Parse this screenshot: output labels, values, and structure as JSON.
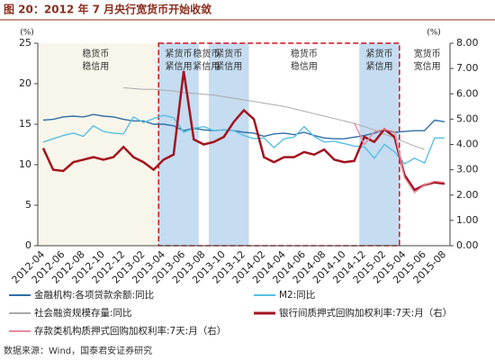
{
  "chart_data": {
    "type": "line",
    "title": "图 20：2012 年 7 月央行宽货币开始收敛",
    "y_unit": "(%)",
    "y2_unit": "(%)",
    "categories": [
      "2012-04",
      null,
      "2012-06",
      null,
      "2012-08",
      null,
      "2012-10",
      null,
      "2012-12",
      null,
      "2013-02",
      null,
      "2013-04",
      null,
      "2013-06",
      null,
      "2013-08",
      null,
      "2013-10",
      null,
      "2013-12",
      null,
      "2014-02",
      null,
      "2014-04",
      null,
      "2014-06",
      null,
      "2014-08",
      null,
      "2014-10",
      null,
      "2014-12",
      null,
      "2015-02",
      null,
      "2015-04",
      null,
      "2015-06",
      null,
      "2015-08"
    ],
    "ylim": [
      0,
      25
    ],
    "yticks": [
      0,
      5,
      10,
      15,
      20,
      25
    ],
    "y2lim": [
      0,
      8
    ],
    "y2ticks": [
      {
        "value": 0,
        "label": "0.00"
      },
      {
        "value": 1,
        "label": "1.00"
      },
      {
        "value": 2,
        "label": "2.00"
      },
      {
        "value": 3,
        "label": "3.00"
      },
      {
        "value": 4,
        "label": "4.00"
      },
      {
        "value": 5,
        "label": "5.00"
      },
      {
        "value": 6,
        "label": "6.00"
      },
      {
        "value": 7,
        "label": "7.00"
      },
      {
        "value": 8,
        "label": "8.00"
      }
    ],
    "series": [
      {
        "name": "金融机构:各项贷款余额:同比",
        "color": "#2f6ea8",
        "values": [
          15.5,
          15.6,
          15.9,
          16.0,
          15.9,
          16.2,
          16.0,
          15.9,
          15.6,
          15.4,
          15.4,
          15.0,
          15.0,
          14.8,
          14.2,
          14.5,
          14.3,
          14.2,
          14.3,
          14.2,
          14.0,
          13.9,
          13.5,
          13.8,
          13.9,
          13.7,
          14.0,
          13.6,
          13.3,
          13.2,
          13.2,
          13.4,
          13.6,
          13.9,
          14.3,
          14.0,
          14.1,
          14.2,
          14.2,
          15.5,
          15.3
        ]
      },
      {
        "name": "M2:同比",
        "color": "#56bfe3",
        "values": [
          12.8,
          13.2,
          13.6,
          13.9,
          13.5,
          14.8,
          14.1,
          13.9,
          13.8,
          15.9,
          15.2,
          15.7,
          16.1,
          15.8,
          14.0,
          14.5,
          14.7,
          14.2,
          14.3,
          14.2,
          13.6,
          13.2,
          13.3,
          12.1,
          13.2,
          13.4,
          14.7,
          13.5,
          12.8,
          12.9,
          12.6,
          12.3,
          12.2,
          10.8,
          12.5,
          11.6,
          10.1,
          10.8,
          10.2,
          13.3,
          13.3
        ]
      },
      {
        "name": "社会融资规模存量:同比",
        "color": "#aaaaaa",
        "values": [
          null,
          null,
          null,
          null,
          null,
          null,
          null,
          null,
          19.5,
          19.4,
          19.3,
          19.3,
          19.2,
          19.1,
          18.9,
          18.8,
          18.7,
          18.6,
          18.4,
          18.2,
          18.0,
          17.8,
          17.6,
          17.4,
          17.2,
          16.9,
          16.6,
          16.3,
          16.0,
          15.7,
          15.4,
          15.1,
          14.7,
          14.3,
          13.8,
          13.3,
          12.8,
          12.3,
          11.9,
          null,
          null
        ]
      },
      {
        "name": "银行间质押式回购加权利率:7天:月（右）",
        "color": "#a3131f",
        "axis": "y2",
        "values": [
          3.85,
          3.0,
          2.95,
          3.3,
          3.4,
          3.5,
          3.4,
          3.5,
          3.9,
          3.5,
          3.3,
          3.0,
          3.4,
          3.6,
          6.9,
          4.2,
          4.0,
          4.1,
          4.3,
          4.9,
          5.35,
          5.0,
          3.5,
          3.3,
          3.5,
          3.5,
          3.7,
          3.6,
          3.8,
          3.4,
          3.3,
          3.35,
          4.3,
          4.1,
          4.6,
          4.3,
          2.8,
          2.2,
          2.4,
          2.5,
          2.45
        ]
      },
      {
        "name": "存款类机构质押式回购加权利率:7天:月（右）",
        "color": "#e88a9e",
        "axis": "y2",
        "values": [
          null,
          null,
          null,
          null,
          null,
          null,
          null,
          null,
          null,
          null,
          null,
          null,
          null,
          null,
          null,
          null,
          null,
          null,
          null,
          null,
          null,
          null,
          null,
          null,
          null,
          null,
          null,
          null,
          null,
          null,
          null,
          4.85,
          4.0,
          4.5,
          4.6,
          4.5,
          2.7,
          2.1,
          2.4,
          2.55,
          2.5
        ]
      }
    ],
    "annotations": [
      [
        "稳货币",
        "稳信用"
      ],
      [
        "紧货币",
        "紧信用"
      ],
      [
        "稳货币",
        "紧信用"
      ],
      [
        "紧货币",
        "紧信用"
      ],
      [
        "稳货币",
        "稳信用"
      ],
      [
        "紧货币",
        "紧信用"
      ],
      [
        "宽货币",
        "宽信用"
      ]
    ],
    "source": "数据来源：Wind，国泰君安证券研究"
  }
}
